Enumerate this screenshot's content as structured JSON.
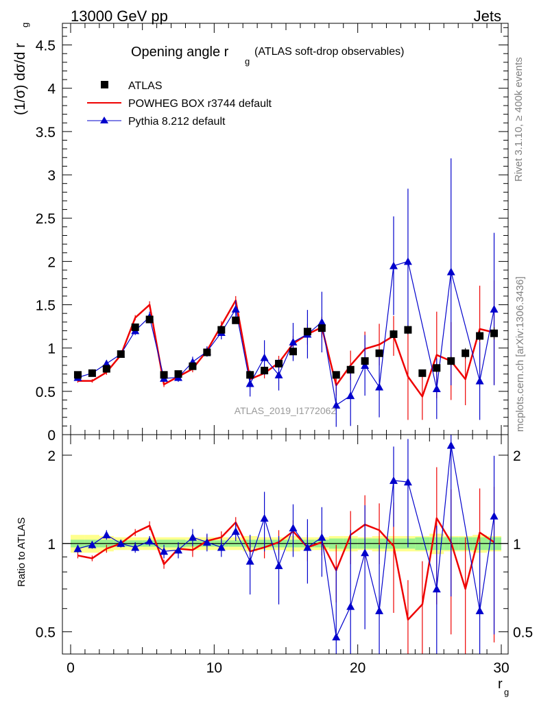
{
  "header": {
    "left": "13000 GeV pp",
    "right": "Jets"
  },
  "side": {
    "rivet": "Rivet 3.1.10, ≥ 400k events",
    "mcplots": "mcplots.cern.ch [arXiv:1306.3436]"
  },
  "chart_data": [
    {
      "panel": "main",
      "type": "scatter",
      "title_main": "Opening angle r",
      "title_sub": "g",
      "title_tail": "(ATLAS soft-drop observables)",
      "ylabel": "(1/σ) dσ/d r",
      "ylabel_sub": "g",
      "watermark": "ATLAS_2019_I1772062",
      "xlim": [
        0,
        30
      ],
      "ylim": [
        0,
        4.75
      ],
      "yticks": [
        0,
        0.5,
        1,
        1.5,
        2,
        2.5,
        3,
        3.5,
        4,
        4.5
      ],
      "ytick_labels": [
        "0",
        "0.5",
        "1",
        "1.5",
        "2",
        "2.5",
        "3",
        "3.5",
        "4",
        "4.5"
      ],
      "legend_position": "top-left",
      "x": [
        0.5,
        1.5,
        2.5,
        3.5,
        4.5,
        5.5,
        6.5,
        7.5,
        8.5,
        9.5,
        10.5,
        11.5,
        12.5,
        13.5,
        14.5,
        15.5,
        16.5,
        17.5,
        18.5,
        19.5,
        20.5,
        21.5,
        22.5,
        23.5,
        24.5,
        25.5,
        26.5,
        27.5,
        28.5,
        29.5
      ],
      "series": [
        {
          "name": "ATLAS",
          "style": "markers",
          "color": "#000000",
          "values": [
            0.69,
            0.71,
            0.76,
            0.93,
            1.24,
            1.33,
            0.69,
            0.7,
            0.79,
            0.95,
            1.21,
            1.32,
            0.69,
            0.74,
            0.82,
            0.96,
            1.19,
            1.23,
            0.69,
            0.75,
            0.85,
            0.94,
            1.16,
            1.21,
            0.71,
            0.77,
            0.85,
            0.94,
            1.14,
            1.17
          ],
          "errors": [
            0.02,
            0.02,
            0.02,
            0.02,
            0.03,
            0.03,
            0.02,
            0.02,
            0.02,
            0.02,
            0.03,
            0.03,
            0.02,
            0.03,
            0.03,
            0.03,
            0.03,
            0.04,
            0.03,
            0.03,
            0.04,
            0.04,
            0.05,
            0.05,
            0.04,
            0.05,
            0.05,
            0.06,
            0.06,
            0.07
          ]
        },
        {
          "name": "POWHEG BOX r3744 default",
          "style": "line",
          "color": "#ee0000",
          "values": [
            0.62,
            0.62,
            0.72,
            0.92,
            1.35,
            1.5,
            0.58,
            0.67,
            0.76,
            0.97,
            1.26,
            1.55,
            0.64,
            0.71,
            0.83,
            1.05,
            1.16,
            1.24,
            0.57,
            0.8,
            0.99,
            1.04,
            1.14,
            0.67,
            0.44,
            0.92,
            0.85,
            0.64,
            1.22,
            1.18
          ],
          "errors": [
            0.02,
            0.02,
            0.03,
            0.03,
            0.03,
            0.04,
            0.03,
            0.03,
            0.04,
            0.04,
            0.05,
            0.05,
            0.05,
            0.06,
            0.08,
            0.09,
            0.12,
            0.12,
            0.12,
            0.17,
            0.2,
            0.24,
            0.23,
            0.5,
            0.27,
            0.5,
            0.45,
            0.3,
            0.5,
            0.6
          ]
        },
        {
          "name": "Pythia 8.212 default",
          "style": "line-triangles",
          "color": "#0000cc",
          "values": [
            0.66,
            0.71,
            0.82,
            0.93,
            1.2,
            1.36,
            0.65,
            0.66,
            0.84,
            0.96,
            1.18,
            1.45,
            0.59,
            0.89,
            0.69,
            1.07,
            1.16,
            1.3,
            0.34,
            0.45,
            0.8,
            0.55,
            1.95,
            2.0,
            null,
            0.53,
            1.88,
            null,
            0.62,
            1.45
          ],
          "errors": [
            0.02,
            0.02,
            0.03,
            0.03,
            0.05,
            0.06,
            0.04,
            0.05,
            0.06,
            0.06,
            0.08,
            0.1,
            0.15,
            0.2,
            0.18,
            0.22,
            0.28,
            0.35,
            0.25,
            0.35,
            0.35,
            0.35,
            0.57,
            0.84,
            null,
            0.35,
            1.31,
            null,
            0.45,
            0.88
          ]
        }
      ]
    },
    {
      "panel": "ratio",
      "type": "scatter",
      "ylabel": "Ratio to ATLAS",
      "xlabel": "r",
      "xlabel_sub": "g",
      "xlim": [
        0,
        30
      ],
      "ylim": [
        0.42,
        2.35
      ],
      "yscale": "log",
      "xticks": [
        0,
        10,
        20,
        30
      ],
      "xtick_labels": [
        "0",
        "10",
        "20",
        "30"
      ],
      "yticks": [
        0.5,
        1,
        2
      ],
      "ytick_labels": [
        "0.5",
        "1",
        "2"
      ],
      "reference": 1,
      "x": [
        0.5,
        1.5,
        2.5,
        3.5,
        4.5,
        5.5,
        6.5,
        7.5,
        8.5,
        9.5,
        10.5,
        11.5,
        12.5,
        13.5,
        14.5,
        15.5,
        16.5,
        17.5,
        18.5,
        19.5,
        20.5,
        21.5,
        22.5,
        23.5,
        24.5,
        25.5,
        26.5,
        27.5,
        28.5,
        29.5
      ],
      "band_outer": [
        0.07,
        0.07,
        0.06,
        0.05,
        0.05,
        0.05,
        0.05,
        0.05,
        0.05,
        0.05,
        0.05,
        0.05,
        0.06,
        0.05,
        0.05,
        0.06,
        0.05,
        0.05,
        0.06,
        0.06,
        0.05,
        0.06,
        0.06,
        0.06,
        0.06,
        0.08,
        0.06,
        0.06,
        0.07,
        0.06
      ],
      "band_inner": [
        0.03,
        0.03,
        0.03,
        0.025,
        0.025,
        0.025,
        0.03,
        0.03,
        0.025,
        0.025,
        0.025,
        0.025,
        0.03,
        0.03,
        0.03,
        0.03,
        0.03,
        0.03,
        0.04,
        0.04,
        0.04,
        0.04,
        0.04,
        0.04,
        0.05,
        0.05,
        0.05,
        0.05,
        0.05,
        0.05
      ],
      "series": [
        {
          "name": "POWHEG BOX r3744 default",
          "color": "#ee0000",
          "values": [
            0.91,
            0.89,
            0.96,
            1.0,
            1.09,
            1.15,
            0.85,
            0.96,
            0.95,
            1.02,
            1.05,
            1.18,
            0.94,
            0.97,
            1.01,
            1.1,
            0.97,
            1.01,
            0.81,
            1.07,
            1.16,
            1.11,
            0.98,
            0.55,
            0.62,
            1.22,
            1.01,
            0.7,
            1.09,
            1.01
          ],
          "errors": [
            0.02,
            0.02,
            0.03,
            0.03,
            0.03,
            0.04,
            0.03,
            0.04,
            0.05,
            0.05,
            0.05,
            0.05,
            0.07,
            0.08,
            0.1,
            0.1,
            0.1,
            0.1,
            0.18,
            0.22,
            0.3,
            0.26,
            0.4,
            0.2,
            0.25,
            0.6,
            0.52,
            0.35,
            0.45,
            0.55
          ]
        },
        {
          "name": "Pythia 8.212 default",
          "color": "#0000cc",
          "values": [
            0.96,
            0.99,
            1.07,
            1.0,
            0.97,
            1.02,
            0.94,
            0.95,
            1.05,
            1.01,
            0.97,
            1.1,
            0.87,
            1.22,
            0.84,
            1.13,
            0.97,
            1.05,
            0.48,
            0.61,
            0.93,
            0.59,
            1.64,
            1.62,
            null,
            0.7,
            2.16,
            null,
            0.59,
            1.24
          ],
          "errors": [
            0.03,
            0.03,
            0.04,
            0.03,
            0.04,
            0.04,
            0.05,
            0.06,
            0.07,
            0.07,
            0.07,
            0.08,
            0.2,
            0.28,
            0.22,
            0.23,
            0.24,
            0.28,
            0.35,
            0.5,
            0.42,
            0.4,
            0.5,
            0.65,
            null,
            0.45,
            1.5,
            null,
            0.42,
            0.75
          ]
        }
      ]
    }
  ]
}
